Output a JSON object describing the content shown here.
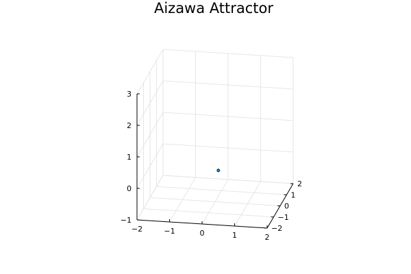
{
  "chart_data": {
    "type": "scatter",
    "title": "Aizawa Attractor",
    "projection": "3d",
    "xlabel": "",
    "ylabel": "",
    "zlabel": "",
    "xlim": [
      -2,
      2
    ],
    "ylim": [
      -2,
      2
    ],
    "zlim": [
      -1,
      3
    ],
    "x_ticks": [
      -2,
      -1,
      0,
      1,
      2
    ],
    "y_ticks": [
      -2,
      -1,
      0,
      1,
      2
    ],
    "z_ticks": [
      -1,
      0,
      1,
      2,
      3
    ],
    "x_tick_labels": [
      "−2",
      "−1",
      "0",
      "1",
      "2"
    ],
    "y_tick_labels": [
      "−2",
      "−1",
      "0",
      "1",
      "2"
    ],
    "z_tick_labels": [
      "−1",
      "0",
      "1",
      "2",
      "3"
    ],
    "grid": true,
    "legend": "none",
    "series": [
      {
        "color": "#009AFA",
        "points": [
          {
            "x": 0.1,
            "y": 0,
            "z": 0
          }
        ]
      }
    ]
  }
}
